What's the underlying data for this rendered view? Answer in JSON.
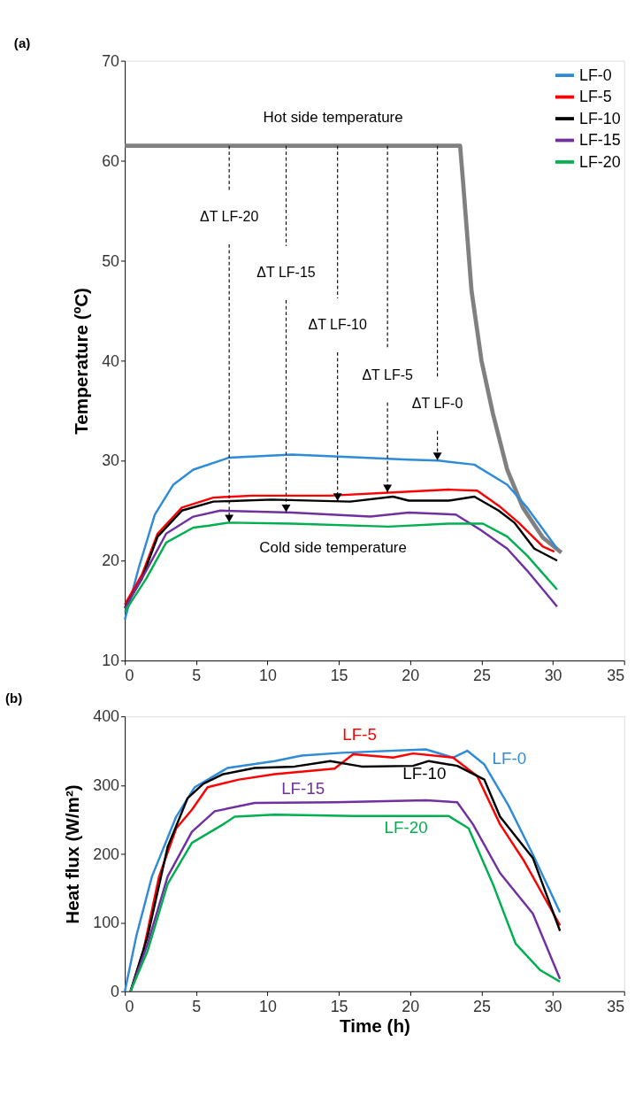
{
  "chart_data": [
    {
      "type": "line",
      "title": "(a)",
      "ylabel": "Temperature (ºC)",
      "xlim": [
        0,
        35
      ],
      "xticks": [
        0,
        5,
        10,
        15,
        20,
        25,
        30,
        35
      ],
      "ylim": [
        10,
        70
      ],
      "yticks": [
        10,
        20,
        30,
        40,
        50,
        60,
        70
      ],
      "grid": false,
      "legend": "top right",
      "series": [
        {
          "color": "#808080",
          "x": [
            0,
            23.5,
            23.7,
            24.3,
            25.0,
            25.8,
            26.8,
            27.9,
            29.3,
            30.6
          ],
          "values": [
            61.5,
            61.5,
            58,
            47,
            40,
            34.7,
            29.1,
            25.3,
            22.3,
            20.8
          ]
        },
        {
          "name": "LF-0",
          "color": "#2e8bd8",
          "x": [
            0,
            1,
            2.1,
            3.4,
            4.8,
            7.3,
            11.7,
            15,
            19.9,
            22,
            24.5,
            26.8,
            28.2,
            30.3
          ],
          "values": [
            14.1,
            19.4,
            24.6,
            27.6,
            29.1,
            30.3,
            30.6,
            30.4,
            30.1,
            30,
            29.6,
            27.6,
            25.3,
            21.2
          ]
        },
        {
          "name": "LF-5",
          "color": "#ff0000",
          "x": [
            0,
            1.2,
            2.3,
            4,
            6.2,
            8.9,
            14.4,
            18.5,
            22.7,
            24.7,
            26.2,
            27.6,
            29.3,
            30.1
          ],
          "values": [
            15.6,
            18.6,
            22.7,
            25.3,
            26.3,
            26.5,
            26.5,
            26.8,
            27.1,
            27,
            25.5,
            23.8,
            21.4,
            20.9
          ]
        },
        {
          "name": "LF-10",
          "color": "#000000",
          "x": [
            0,
            1.2,
            2.3,
            4,
            6.2,
            10.3,
            15.8,
            18.8,
            19.9,
            22.7,
            24.5,
            26.2,
            27.3,
            28.7,
            30.3
          ],
          "values": [
            15.3,
            18.2,
            22.4,
            25,
            25.9,
            26.1,
            25.9,
            26.4,
            26,
            26,
            26.4,
            25,
            23.8,
            21.2,
            20
          ]
        },
        {
          "name": "LF-15",
          "color": "#7030a0",
          "x": [
            0,
            1.5,
            2.9,
            4.8,
            6.7,
            11.7,
            17.2,
            19.9,
            23.2,
            24.9,
            26.8,
            28.2,
            30.3
          ],
          "values": [
            15.2,
            19,
            22.7,
            24.4,
            25,
            24.8,
            24.4,
            24.8,
            24.6,
            23.1,
            21.2,
            19,
            15.4
          ]
        },
        {
          "name": "LF-20",
          "color": "#00b050",
          "x": [
            0,
            1.5,
            2.9,
            4.8,
            5.9,
            7.3,
            11.7,
            18.5,
            22.7,
            25.1,
            26.8,
            28.2,
            30.3
          ],
          "values": [
            14.9,
            18.2,
            21.8,
            23.3,
            23.5,
            23.8,
            23.7,
            23.4,
            23.7,
            23.7,
            22.4,
            20.5,
            17.1
          ]
        }
      ],
      "annotations": [
        "Hot side temperature",
        "Cold side temperature",
        "ΔT LF-20",
        "ΔT LF-15",
        "ΔT LF-10",
        "ΔT LF-5",
        "ΔT LF-0"
      ]
    },
    {
      "type": "line",
      "title": "(b)",
      "xlabel": "Time (h)",
      "ylabel": "Heat flux (W/m²)",
      "xlim": [
        0,
        35
      ],
      "xticks": [
        0,
        5,
        10,
        15,
        20,
        25,
        30,
        35
      ],
      "ylim": [
        0,
        400
      ],
      "yticks": [
        0,
        100,
        200,
        300,
        400
      ],
      "grid": false,
      "series": [
        {
          "name": "LF-0",
          "color": "#2e8bd8",
          "x": [
            0,
            0.8,
            1.9,
            3.6,
            4.9,
            7.2,
            10.5,
            12.4,
            15.2,
            21.1,
            23,
            24,
            25.2,
            26.9,
            28.6,
            30.5
          ],
          "values": [
            0,
            80,
            167,
            254,
            297,
            325,
            335,
            343,
            347,
            352,
            340,
            350,
            330,
            270,
            199,
            115
          ]
        },
        {
          "name": "LF-5",
          "color": "#ff0000",
          "x": [
            0.4,
            1.3,
            2.4,
            3.6,
            4.7,
            5.8,
            8,
            10.5,
            14.7,
            16,
            18.8,
            20.2,
            23,
            24.7,
            26.3,
            28,
            30.5
          ],
          "values": [
            0,
            59,
            167,
            237,
            264,
            297,
            308,
            316,
            324,
            345,
            340,
            346,
            340,
            313,
            243,
            189,
            96
          ]
        },
        {
          "name": "LF-10",
          "color": "#000000",
          "x": [
            0.4,
            1.6,
            3,
            4.4,
            5.5,
            6.9,
            9.1,
            11.9,
            14.4,
            16.6,
            20.2,
            21.3,
            23.3,
            25.2,
            26.3,
            28.6,
            30.5
          ],
          "values": [
            0,
            80,
            210,
            281,
            302,
            316,
            325,
            327,
            335,
            327,
            328,
            335,
            328,
            308,
            254,
            194,
            88
          ]
        },
        {
          "name": "LF-15",
          "color": "#7030a0",
          "x": [
            0.4,
            1.6,
            3,
            4.7,
            6.3,
            9.1,
            14.7,
            21.1,
            23.3,
            24.4,
            26.3,
            28.6,
            30.5
          ],
          "values": [
            0,
            69,
            167,
            232,
            262,
            274,
            275,
            278,
            275,
            243,
            172,
            113,
            18
          ]
        },
        {
          "name": "LF-20",
          "color": "#00b050",
          "x": [
            0.4,
            1.6,
            3,
            4.7,
            6.9,
            7.7,
            10.5,
            16,
            20.8,
            22.7,
            24.1,
            25.8,
            27.4,
            29.1,
            30.5
          ],
          "values": [
            0,
            59,
            156,
            216,
            243,
            254,
            257,
            255,
            255,
            255,
            237,
            156,
            69,
            31,
            14
          ]
        }
      ]
    }
  ]
}
